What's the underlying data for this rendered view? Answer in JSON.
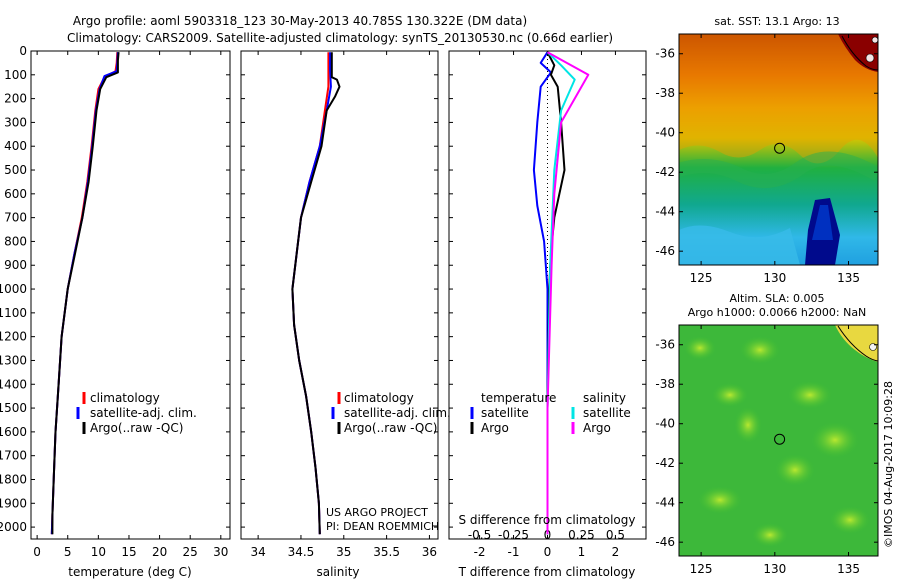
{
  "header": {
    "line1": "Argo profile: aoml 5903318_123 30-May-2013 40.785S 130.322E (DM data)",
    "line2": "Climatology: CARS2009. Satellite-adjusted climatology: synTS_20130530.nc (0.66d earlier)"
  },
  "side_note": "©IMOS 04-Aug-2017 10:09:28",
  "project": {
    "line1": "US ARGO PROJECT",
    "line2": "PI: DEAN ROEMMICH"
  },
  "colors": {
    "climatology": "#ff0000",
    "satellite": "#0000ff",
    "argo": "#000000",
    "sal_satellite": "#00e5e5",
    "sal_argo": "#ff00ff"
  },
  "chart_data": [
    {
      "type": "line",
      "id": "temperature",
      "xlabel": "temperature (deg C)",
      "ylabel": "",
      "xlim": [
        -1,
        31.5
      ],
      "ylim": [
        2050,
        0
      ],
      "xticks": [
        0,
        5,
        10,
        15,
        20,
        25,
        30
      ],
      "yticks": [
        0,
        100,
        200,
        300,
        400,
        500,
        600,
        700,
        800,
        900,
        1000,
        1100,
        1200,
        1300,
        1400,
        1500,
        1600,
        1700,
        1800,
        1900,
        2000
      ],
      "legend": [
        "climatology",
        "satellite-adj. clim.",
        "Argo(..raw -QC)"
      ],
      "series": [
        {
          "name": "climatology",
          "color": "#ff0000",
          "points": [
            [
              13.1,
              5
            ],
            [
              13.0,
              50
            ],
            [
              12.8,
              85
            ],
            [
              11.0,
              110
            ],
            [
              10.0,
              160
            ],
            [
              9.5,
              250
            ],
            [
              8.9,
              400
            ],
            [
              8.2,
              550
            ],
            [
              7.3,
              700
            ],
            [
              6.1,
              850
            ],
            [
              5.0,
              1000
            ],
            [
              4.0,
              1200
            ],
            [
              3.5,
              1400
            ],
            [
              3.0,
              1600
            ],
            [
              2.7,
              1800
            ],
            [
              2.5,
              1950
            ],
            [
              2.4,
              2030
            ]
          ]
        },
        {
          "name": "satellite-adj. clim.",
          "color": "#0000ff",
          "points": [
            [
              13.2,
              5
            ],
            [
              13.1,
              50
            ],
            [
              13.0,
              85
            ],
            [
              11.0,
              105
            ],
            [
              10.2,
              160
            ],
            [
              9.6,
              250
            ],
            [
              9.0,
              400
            ],
            [
              8.3,
              550
            ],
            [
              7.4,
              700
            ],
            [
              6.1,
              850
            ],
            [
              5.0,
              1000
            ],
            [
              4.0,
              1200
            ],
            [
              3.5,
              1400
            ],
            [
              3.0,
              1600
            ],
            [
              2.7,
              1800
            ],
            [
              2.5,
              1950
            ],
            [
              2.4,
              2030
            ]
          ]
        },
        {
          "name": "Argo(..raw -QC)",
          "color": "#000000",
          "points": [
            [
              13.3,
              5
            ],
            [
              13.2,
              40
            ],
            [
              13.2,
              90
            ],
            [
              11.3,
              110
            ],
            [
              10.3,
              160
            ],
            [
              9.7,
              250
            ],
            [
              9.1,
              400
            ],
            [
              8.4,
              550
            ],
            [
              7.4,
              700
            ],
            [
              6.2,
              850
            ],
            [
              5.0,
              1000
            ],
            [
              4.0,
              1200
            ],
            [
              3.5,
              1400
            ],
            [
              3.0,
              1600
            ],
            [
              2.7,
              1800
            ],
            [
              2.5,
              1950
            ],
            [
              2.5,
              2030
            ]
          ]
        }
      ]
    },
    {
      "type": "line",
      "id": "salinity",
      "xlabel": "salinity",
      "xlim": [
        33.8,
        36.1
      ],
      "ylim": [
        2050,
        0
      ],
      "xticks": [
        34,
        34.5,
        35,
        35.5,
        36
      ],
      "legend": [
        "climatology",
        "satellite-adj. clim.",
        "Argo(..raw -QC)"
      ],
      "series": [
        {
          "name": "climatology",
          "color": "#ff0000",
          "points": [
            [
              34.82,
              5
            ],
            [
              34.82,
              80
            ],
            [
              34.82,
              150
            ],
            [
              34.78,
              250
            ],
            [
              34.72,
              400
            ],
            [
              34.6,
              550
            ],
            [
              34.5,
              700
            ],
            [
              34.45,
              850
            ],
            [
              34.4,
              1000
            ],
            [
              34.42,
              1150
            ],
            [
              34.48,
              1300
            ],
            [
              34.56,
              1450
            ],
            [
              34.62,
              1600
            ],
            [
              34.67,
              1750
            ],
            [
              34.71,
              1900
            ],
            [
              34.72,
              2030
            ]
          ]
        },
        {
          "name": "satellite-adj. clim.",
          "color": "#0000ff",
          "points": [
            [
              34.84,
              5
            ],
            [
              34.84,
              80
            ],
            [
              34.85,
              150
            ],
            [
              34.8,
              250
            ],
            [
              34.72,
              400
            ],
            [
              34.6,
              550
            ],
            [
              34.5,
              700
            ],
            [
              34.45,
              850
            ],
            [
              34.4,
              1000
            ],
            [
              34.42,
              1150
            ],
            [
              34.48,
              1300
            ],
            [
              34.56,
              1450
            ],
            [
              34.62,
              1600
            ],
            [
              34.67,
              1750
            ],
            [
              34.71,
              1900
            ],
            [
              34.72,
              2030
            ]
          ]
        },
        {
          "name": "Argo(..raw -QC)",
          "color": "#000000",
          "points": [
            [
              34.86,
              5
            ],
            [
              34.86,
              110
            ],
            [
              34.92,
              120
            ],
            [
              34.95,
              150
            ],
            [
              34.9,
              190
            ],
            [
              34.8,
              250
            ],
            [
              34.74,
              400
            ],
            [
              34.62,
              550
            ],
            [
              34.5,
              700
            ],
            [
              34.45,
              850
            ],
            [
              34.4,
              1000
            ],
            [
              34.42,
              1150
            ],
            [
              34.48,
              1300
            ],
            [
              34.56,
              1450
            ],
            [
              34.62,
              1600
            ],
            [
              34.67,
              1750
            ],
            [
              34.71,
              1900
            ],
            [
              34.72,
              2030
            ]
          ]
        }
      ]
    },
    {
      "type": "line",
      "id": "difference",
      "xlabel": "T difference from climatology",
      "xlabel_top": "S difference from climatology",
      "xlim": [
        -2.9,
        2.9
      ],
      "ylim": [
        2050,
        0
      ],
      "xticks_T": [
        -2,
        -1,
        0,
        1,
        2
      ],
      "xticks_S": [
        -0.5,
        -0.25,
        0,
        0.25,
        0.5
      ],
      "legend_left_title": "temperature",
      "legend_right_title": "salinity",
      "legend_left": [
        "satellite",
        "Argo"
      ],
      "legend_right": [
        "satellite",
        "Argo"
      ],
      "series": [
        {
          "name": "T satellite",
          "color": "#0000ff",
          "points": [
            [
              0.0,
              5
            ],
            [
              -0.2,
              50
            ],
            [
              0.1,
              90
            ],
            [
              -0.2,
              150
            ],
            [
              -0.3,
              300
            ],
            [
              -0.4,
              500
            ],
            [
              -0.3,
              650
            ],
            [
              -0.1,
              800
            ],
            [
              0.0,
              1000
            ],
            [
              0.0,
              1500
            ],
            [
              0.0,
              2030
            ]
          ]
        },
        {
          "name": "T Argo",
          "color": "#000000",
          "points": [
            [
              0.0,
              5
            ],
            [
              0.2,
              60
            ],
            [
              0.1,
              100
            ],
            [
              0.3,
              150
            ],
            [
              0.4,
              300
            ],
            [
              0.5,
              500
            ],
            [
              0.2,
              700
            ],
            [
              0.1,
              850
            ],
            [
              0.05,
              1000
            ],
            [
              0.0,
              1500
            ],
            [
              0.0,
              2030
            ]
          ]
        },
        {
          "name": "S satellite",
          "color": "#00e5e5",
          "points": [
            [
              0.0,
              5
            ],
            [
              0.1,
              60
            ],
            [
              0.2,
              120
            ],
            [
              0.1,
              250
            ],
            [
              0.05,
              500
            ],
            [
              0.02,
              900
            ],
            [
              0.0,
              1500
            ],
            [
              0.0,
              2030
            ]
          ]
        },
        {
          "name": "S Argo",
          "color": "#ff00ff",
          "points": [
            [
              0.0,
              5
            ],
            [
              0.3,
              100
            ],
            [
              0.2,
              200
            ],
            [
              0.1,
              300
            ],
            [
              0.05,
              600
            ],
            [
              0.03,
              900
            ],
            [
              0.0,
              1500
            ],
            [
              0.0,
              2030
            ]
          ]
        }
      ]
    },
    {
      "type": "heatmap",
      "id": "sst_map",
      "title": "sat. SST: 13.1  Argo: 13",
      "xlim": [
        123.5,
        137
      ],
      "ylim": [
        -46.7,
        -35
      ],
      "xticks": [
        125,
        130,
        135
      ],
      "yticks": [
        -36,
        -38,
        -40,
        -42,
        -44,
        -46
      ],
      "marker": [
        130.322,
        -40.785
      ]
    },
    {
      "type": "heatmap",
      "id": "sla_map",
      "title_line1": "Altim. SLA: 0.005",
      "title_line2": "Argo h1000: 0.0066 h2000: NaN",
      "xlim": [
        123.5,
        137
      ],
      "ylim": [
        -46.7,
        -35
      ],
      "xticks": [
        125,
        130,
        135
      ],
      "yticks": [
        -36,
        -38,
        -40,
        -42,
        -44,
        -46
      ],
      "marker": [
        130.322,
        -40.785
      ]
    }
  ]
}
